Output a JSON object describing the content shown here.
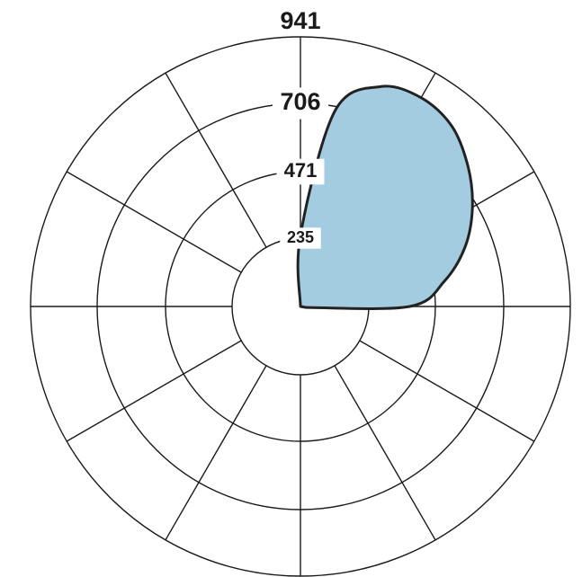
{
  "chart_data": {
    "type": "polar-area",
    "title": "",
    "radial_ticks": [
      235,
      471,
      706,
      941
    ],
    "rmax": 941,
    "angular_divisions": 12,
    "zero_direction": "up",
    "direction": "clockwise",
    "series": [
      {
        "color": "#a4cce0",
        "theta_deg": [
          0,
          10,
          20,
          30,
          40,
          50,
          60,
          70,
          80,
          90,
          100
        ],
        "r": [
          245,
          690,
          815,
          840,
          820,
          760,
          690,
          610,
          510,
          380,
          20
        ]
      }
    ]
  }
}
